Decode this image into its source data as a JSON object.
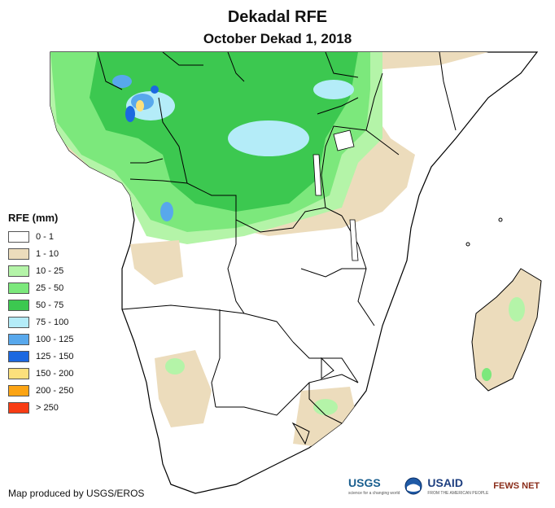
{
  "header": {
    "title": "Dekadal RFE",
    "subtitle": "October Dekad 1, 2018"
  },
  "legend": {
    "title": "RFE (mm)",
    "items": [
      {
        "label": "0 - 1",
        "color": "#ffffff"
      },
      {
        "label": "1 - 10",
        "color": "#ecdcbc"
      },
      {
        "label": "10 - 25",
        "color": "#b4f4a8"
      },
      {
        "label": "25 - 50",
        "color": "#7ce87c"
      },
      {
        "label": "50 - 75",
        "color": "#3cc850"
      },
      {
        "label": "75 - 100",
        "color": "#b4ecf8"
      },
      {
        "label": "100 - 125",
        "color": "#58a8ec"
      },
      {
        "label": "125 - 150",
        "color": "#1c68e0"
      },
      {
        "label": "150 - 200",
        "color": "#fce07c"
      },
      {
        "label": "200 - 250",
        "color": "#fca414"
      },
      {
        "label": "> 250",
        "color": "#f83c14"
      }
    ]
  },
  "credit": "Map produced by USGS/EROS",
  "logos": {
    "usgs": "USGS",
    "usgs_tagline": "science for a changing world",
    "usaid": "USAID",
    "usaid_tagline": "FROM THE AMERICAN PEOPLE",
    "fews": "FEWS NET",
    "noaa_icon": "noaa-logo-icon"
  },
  "colors": {
    "border": "#000000",
    "land": "#ffffff"
  }
}
